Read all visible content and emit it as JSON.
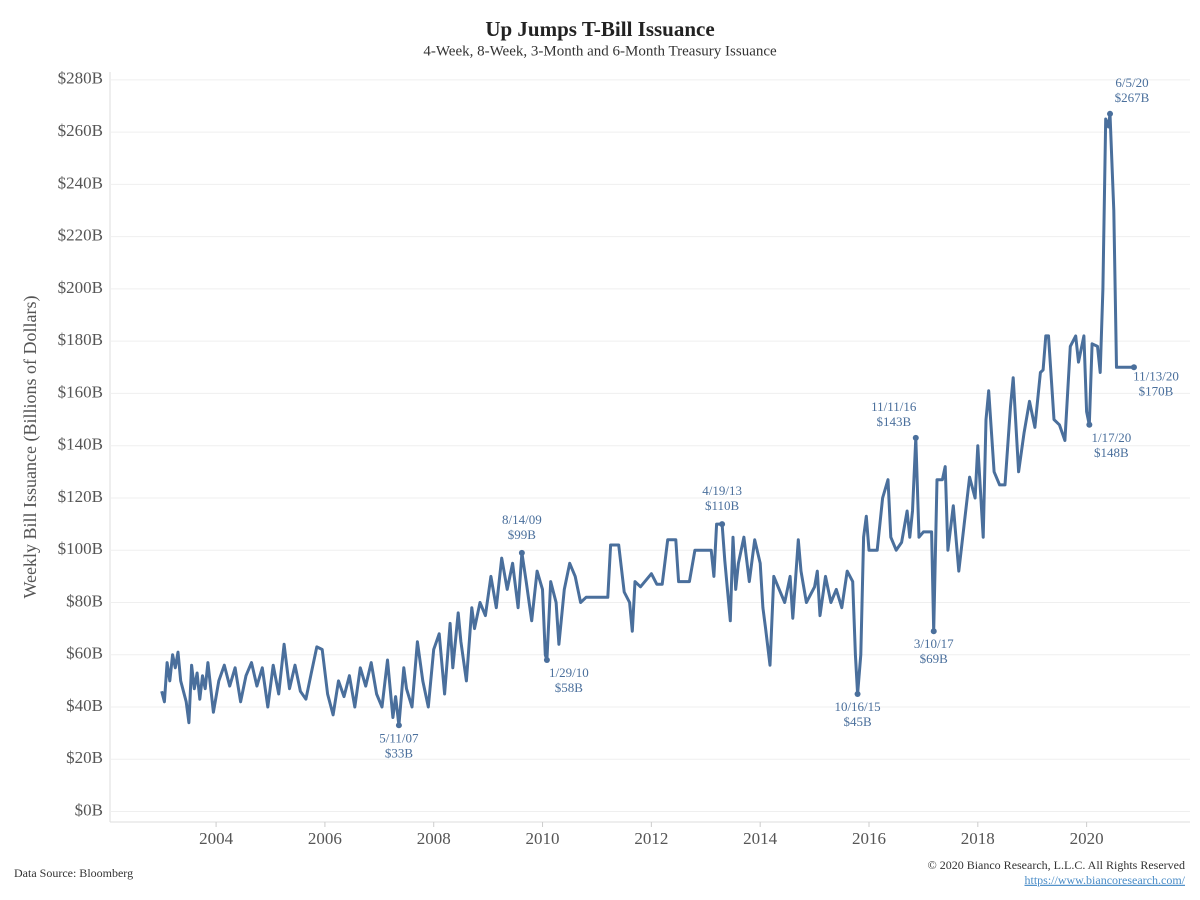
{
  "chart_data": {
    "type": "line",
    "title": "Up Jumps T-Bill Issuance",
    "subtitle": "4-Week, 8-Week, 3-Month and 6-Month Treasury Issuance",
    "y_label": "Weekly Bill Issuance (Billions of Dollars)",
    "color": "#4a6f9c",
    "grid": true,
    "x": [
      2003.0,
      2003.05,
      2003.1,
      2003.15,
      2003.2,
      2003.25,
      2003.3,
      2003.35,
      2003.45,
      2003.5,
      2003.55,
      2003.6,
      2003.65,
      2003.7,
      2003.75,
      2003.8,
      2003.85,
      2003.95,
      2004.05,
      2004.15,
      2004.25,
      2004.35,
      2004.45,
      2004.55,
      2004.65,
      2004.75,
      2004.85,
      2004.95,
      2005.05,
      2005.15,
      2005.25,
      2005.35,
      2005.45,
      2005.55,
      2005.65,
      2005.75,
      2005.85,
      2005.95,
      2006.05,
      2006.15,
      2006.25,
      2006.35,
      2006.45,
      2006.55,
      2006.65,
      2006.75,
      2006.85,
      2006.95,
      2007.05,
      2007.15,
      2007.25,
      2007.3,
      2007.36,
      2007.45,
      2007.5,
      2007.6,
      2007.7,
      2007.8,
      2007.9,
      2008.0,
      2008.1,
      2008.2,
      2008.3,
      2008.35,
      2008.45,
      2008.5,
      2008.6,
      2008.7,
      2008.75,
      2008.85,
      2008.95,
      2009.05,
      2009.15,
      2009.25,
      2009.35,
      2009.45,
      2009.55,
      2009.62,
      2009.7,
      2009.8,
      2009.9,
      2010.0,
      2010.05,
      2010.08,
      2010.15,
      2010.25,
      2010.3,
      2010.4,
      2010.5,
      2010.6,
      2010.7,
      2010.8,
      2011.0,
      2011.2,
      2011.25,
      2011.4,
      2011.5,
      2011.6,
      2011.65,
      2011.7,
      2011.8,
      2012.0,
      2012.1,
      2012.2,
      2012.3,
      2012.45,
      2012.5,
      2012.7,
      2012.8,
      2013.1,
      2013.15,
      2013.2,
      2013.3,
      2013.35,
      2013.45,
      2013.5,
      2013.55,
      2013.6,
      2013.7,
      2013.8,
      2013.9,
      2014.0,
      2014.05,
      2014.1,
      2014.18,
      2014.25,
      2014.35,
      2014.45,
      2014.55,
      2014.6,
      2014.7,
      2014.75,
      2014.85,
      2015.0,
      2015.05,
      2015.1,
      2015.2,
      2015.3,
      2015.4,
      2015.5,
      2015.6,
      2015.7,
      2015.75,
      2015.79,
      2015.85,
      2015.9,
      2015.95,
      2016.0,
      2016.15,
      2016.25,
      2016.35,
      2016.4,
      2016.5,
      2016.6,
      2016.7,
      2016.75,
      2016.8,
      2016.86,
      2016.92,
      2017.0,
      2017.15,
      2017.19,
      2017.25,
      2017.35,
      2017.4,
      2017.45,
      2017.55,
      2017.65,
      2017.75,
      2017.85,
      2017.95,
      2018.0,
      2018.1,
      2018.15,
      2018.2,
      2018.3,
      2018.4,
      2018.5,
      2018.6,
      2018.65,
      2018.75,
      2018.85,
      2018.95,
      2019.05,
      2019.15,
      2019.2,
      2019.25,
      2019.3,
      2019.4,
      2019.5,
      2019.6,
      2019.7,
      2019.8,
      2019.85,
      2019.95,
      2020.0,
      2020.05,
      2020.1,
      2020.2,
      2020.25,
      2020.3,
      2020.35,
      2020.4,
      2020.43,
      2020.5,
      2020.55,
      2020.87
    ],
    "values": [
      46,
      42,
      57,
      50,
      60,
      55,
      61,
      50,
      42,
      34,
      56,
      47,
      53,
      43,
      52,
      47,
      57,
      38,
      50,
      56,
      48,
      55,
      42,
      52,
      57,
      48,
      55,
      40,
      56,
      45,
      64,
      47,
      56,
      46,
      43,
      53,
      63,
      62,
      45,
      37,
      50,
      44,
      52,
      40,
      55,
      48,
      57,
      45,
      40,
      58,
      36,
      44,
      33,
      55,
      47,
      40,
      65,
      50,
      40,
      62,
      68,
      45,
      72,
      55,
      76,
      65,
      50,
      78,
      70,
      80,
      75,
      90,
      78,
      97,
      85,
      95,
      78,
      99,
      88,
      73,
      92,
      85,
      60,
      58,
      88,
      80,
      64,
      85,
      95,
      90,
      80,
      82,
      82,
      82,
      102,
      102,
      84,
      80,
      69,
      88,
      86,
      91,
      87,
      87,
      104,
      104,
      88,
      88,
      100,
      100,
      90,
      110,
      110,
      96,
      73,
      105,
      85,
      95,
      105,
      88,
      104,
      95,
      78,
      70,
      56,
      90,
      85,
      80,
      90,
      74,
      104,
      92,
      80,
      86,
      92,
      75,
      90,
      80,
      85,
      78,
      92,
      88,
      60,
      45,
      60,
      105,
      113,
      100,
      100,
      120,
      127,
      105,
      100,
      103,
      115,
      105,
      115,
      143,
      105,
      107,
      107,
      69,
      127,
      127,
      132,
      100,
      117,
      92,
      110,
      128,
      120,
      140,
      105,
      150,
      161,
      130,
      125,
      125,
      155,
      166,
      130,
      145,
      157,
      147,
      168,
      169,
      182,
      182,
      150,
      148,
      142,
      178,
      182,
      172,
      182,
      153,
      148,
      179,
      178,
      168,
      200,
      265,
      262,
      267,
      230,
      170,
      170
    ],
    "xlim": [
      2002.05,
      2021.9
    ],
    "xticks": [
      2004,
      2006,
      2008,
      2010,
      2012,
      2014,
      2016,
      2018,
      2020
    ],
    "ylim": [
      -4,
      283
    ],
    "yticks": [
      {
        "value": 0,
        "label": "$0B"
      },
      {
        "value": 20,
        "label": "$20B"
      },
      {
        "value": 40,
        "label": "$40B"
      },
      {
        "value": 60,
        "label": "$60B"
      },
      {
        "value": 80,
        "label": "$80B"
      },
      {
        "value": 100,
        "label": "$100B"
      },
      {
        "value": 120,
        "label": "$120B"
      },
      {
        "value": 140,
        "label": "$140B"
      },
      {
        "value": 160,
        "label": "$160B"
      },
      {
        "value": 180,
        "label": "$180B"
      },
      {
        "value": 200,
        "label": "$200B"
      },
      {
        "value": 220,
        "label": "$220B"
      },
      {
        "value": 240,
        "label": "$240B"
      },
      {
        "value": 260,
        "label": "$260B"
      },
      {
        "value": 280,
        "label": "$280B"
      }
    ],
    "annotations": [
      {
        "x": 2007.36,
        "y": 33,
        "label": "5/11/07",
        "value_label": "$33B",
        "position": "below"
      },
      {
        "x": 2009.62,
        "y": 99,
        "label": "8/14/09",
        "value_label": "$99B",
        "position": "above"
      },
      {
        "x": 2010.08,
        "y": 58,
        "label": "1/29/10",
        "value_label": "$58B",
        "position": "below-right"
      },
      {
        "x": 2013.3,
        "y": 110,
        "label": "4/19/13",
        "value_label": "$110B",
        "position": "above"
      },
      {
        "x": 2015.79,
        "y": 45,
        "label": "10/16/15",
        "value_label": "$45B",
        "position": "below"
      },
      {
        "x": 2016.86,
        "y": 143,
        "label": "11/11/16",
        "value_label": "$143B",
        "position": "above-left"
      },
      {
        "x": 2017.19,
        "y": 69,
        "label": "3/10/17",
        "value_label": "$69B",
        "position": "below"
      },
      {
        "x": 2020.05,
        "y": 148,
        "label": "1/17/20",
        "value_label": "$148B",
        "position": "below-right"
      },
      {
        "x": 2020.43,
        "y": 267,
        "label": "6/5/20",
        "value_label": "$267B",
        "position": "above-right"
      },
      {
        "x": 2020.87,
        "y": 170,
        "label": "11/13/20",
        "value_label": "$170B",
        "position": "right"
      }
    ]
  },
  "footer": {
    "source": "Data Source: Bloomberg",
    "copyright": "© 2020 Bianco Research, L.L.C. All Rights Reserved",
    "link": "https://www.biancoresearch.com/"
  }
}
